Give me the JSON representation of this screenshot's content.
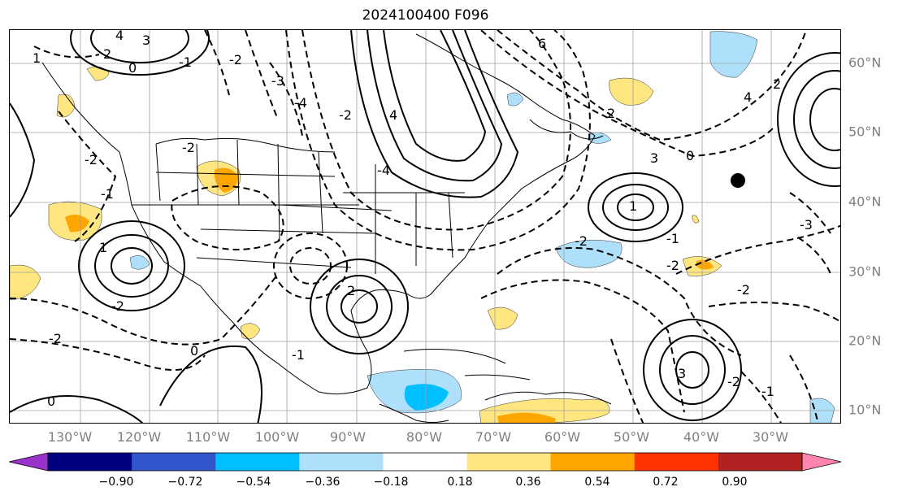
{
  "title": "2024100400 F096",
  "lon_labels": [
    "130°W",
    "120°W",
    "110°W",
    "100°W",
    "90°W",
    "80°W",
    "70°W",
    "60°W",
    "50°W",
    "40°W",
    "30°W"
  ],
  "lat_labels": [
    "60°N",
    "50°N",
    "40°N",
    "30°N",
    "20°N",
    "10°N"
  ],
  "colorbar": {
    "colors": [
      "#9933cc",
      "#000080",
      "#3355cc",
      "#00bfff",
      "#aee0fb",
      "#ffffff",
      "#ffe680",
      "#ffa500",
      "#ff3300",
      "#b22222",
      "#ff85b0"
    ],
    "tick_labels": [
      "−0.90",
      "−0.72",
      "−0.54",
      "−0.36",
      "−0.18",
      "0.18",
      "0.36",
      "0.54",
      "0.72",
      "0.90"
    ]
  },
  "map": {
    "marker": "black-dot-marker",
    "contour_labels": [
      "4",
      "3",
      "2",
      "1",
      "0",
      "-1",
      "-2",
      "-3",
      "-4",
      "6",
      "2",
      "4",
      "3",
      "1",
      "2",
      "0",
      "-1",
      "1",
      "-1",
      "2",
      "-2",
      "4",
      "-2",
      "-4",
      "-2",
      "-2",
      "-3",
      "-2",
      "-2",
      "-2",
      "3",
      "-1",
      "-2",
      "0",
      "-1",
      "0",
      "-2"
    ]
  }
}
